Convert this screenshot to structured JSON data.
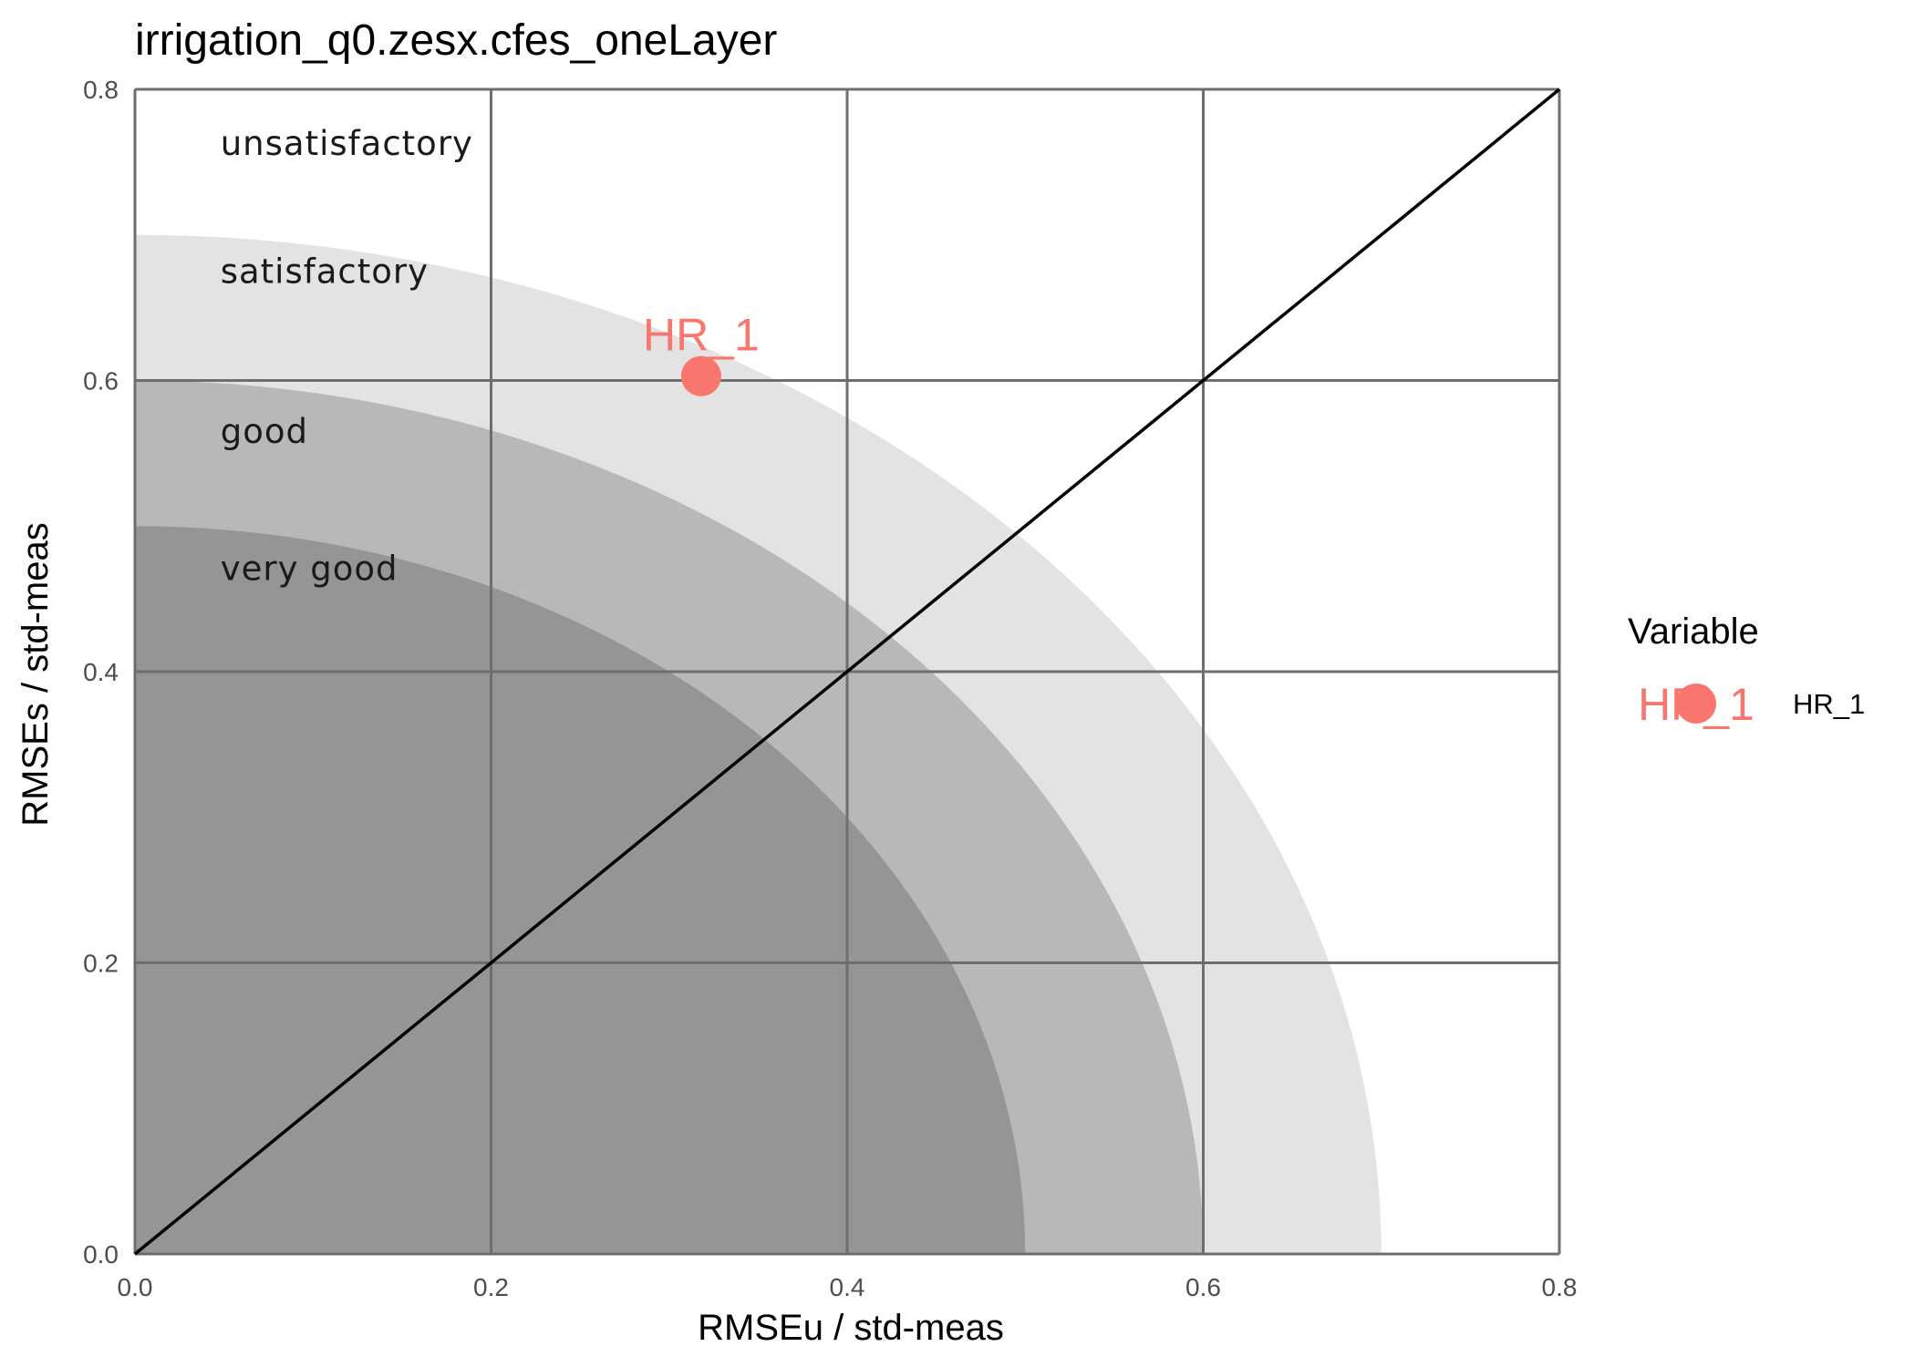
{
  "chart_data": {
    "type": "scatter",
    "title": "irrigation_q0.zesx.cfes_oneLayer",
    "xlabel": "RMSEu / std-meas",
    "ylabel": "RMSEs / std-meas",
    "xlim": [
      0,
      0.8
    ],
    "ylim": [
      0,
      0.8
    ],
    "x_ticks": [
      "0.0",
      "0.2",
      "0.4",
      "0.6",
      "0.8"
    ],
    "y_ticks": [
      "0.0",
      "0.2",
      "0.4",
      "0.6",
      "0.8"
    ],
    "grid": true,
    "reference_line": {
      "type": "identity",
      "from": [
        0,
        0
      ],
      "to": [
        0.8,
        0.8
      ]
    },
    "zones": [
      {
        "label": "unsatisfactory",
        "radius": null,
        "color": "#ffffff"
      },
      {
        "label": "satisfactory",
        "radius": 0.7,
        "color": "#e3e3e3"
      },
      {
        "label": "good",
        "radius": 0.6,
        "color": "#b8b8b8"
      },
      {
        "label": "very good",
        "radius": 0.5,
        "color": "#959595"
      }
    ],
    "series": [
      {
        "name": "HR_1",
        "color": "#f8766d",
        "points": [
          {
            "x": 0.318,
            "y": 0.603,
            "label": "HR_1"
          }
        ]
      }
    ],
    "legend": {
      "title": "Variable",
      "position": "right",
      "entries": [
        "HR_1"
      ]
    }
  }
}
